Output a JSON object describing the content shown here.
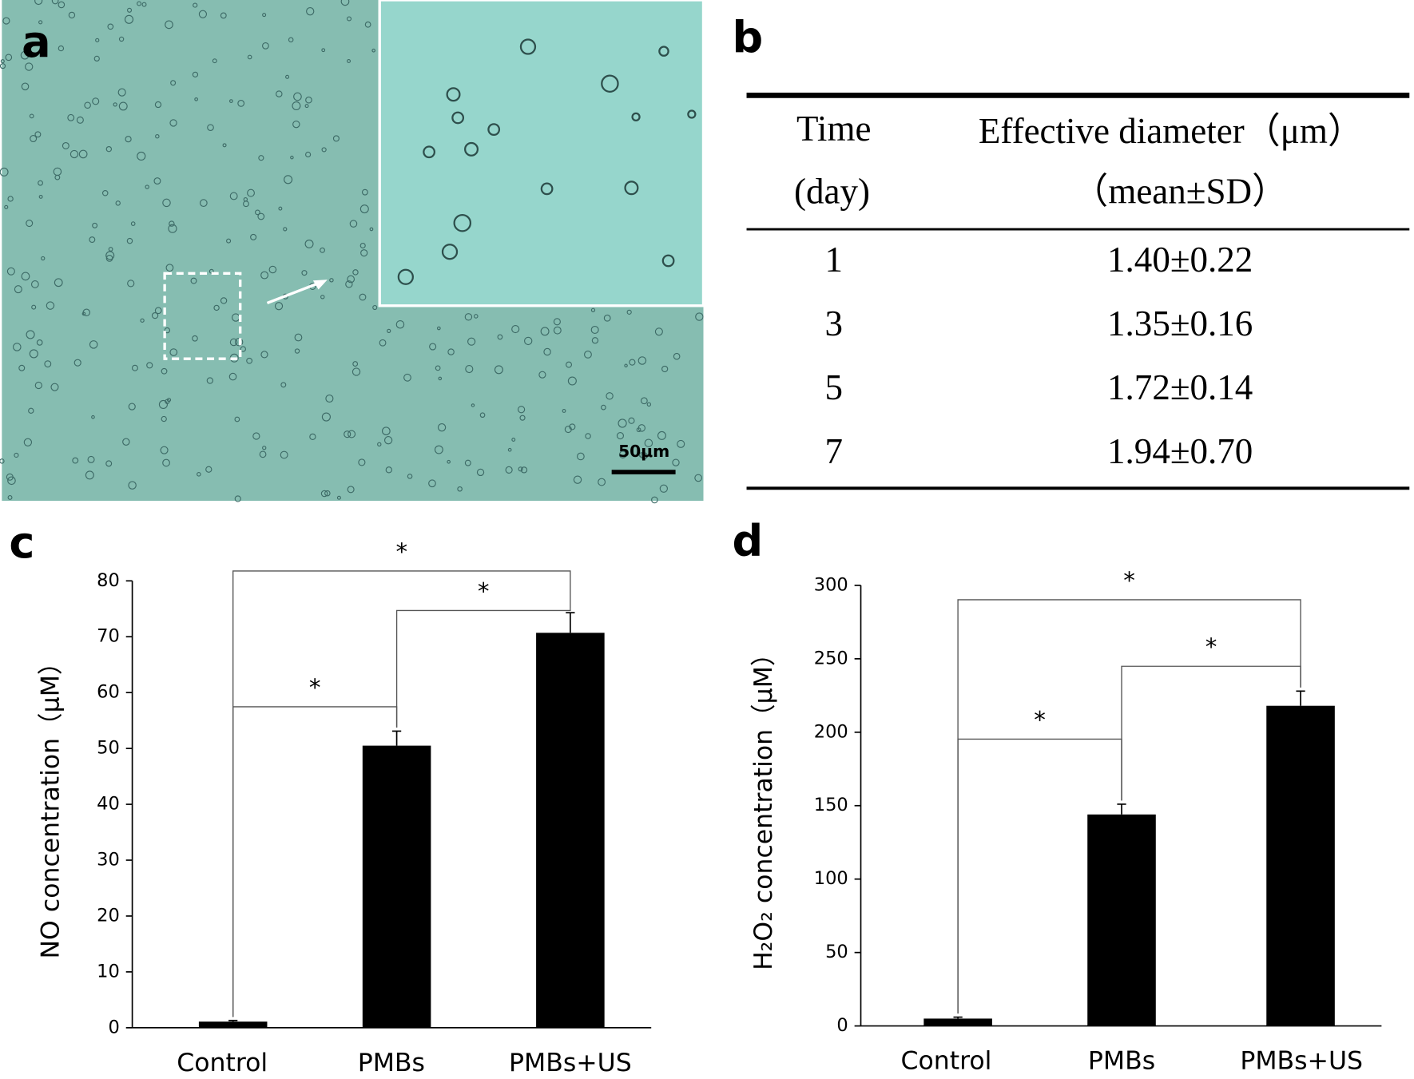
{
  "panel_labels": [
    "a",
    "b",
    "c",
    "d"
  ],
  "micrograph": {
    "scale_bar": "50μm"
  },
  "table": {
    "header": [
      [
        "Time",
        "(day)"
      ],
      [
        "Effective diameter（μm）",
        "（mean±SD）"
      ]
    ],
    "rows": [
      [
        "1",
        "1.40±0.22"
      ],
      [
        "3",
        "1.35±0.16"
      ],
      [
        "5",
        "1.72±0.14"
      ],
      [
        "7",
        "1.94±0.70"
      ]
    ]
  },
  "chart_data": [
    {
      "type": "bar",
      "y_label": "NO concentration（μM）",
      "categories": [
        "Control",
        "PMBs",
        "PMBs+US"
      ],
      "values": [
        1.1,
        50.5,
        70.7
      ],
      "errors": [
        0.2,
        2.6,
        3.6
      ],
      "color": "#000000",
      "ylim": [
        0,
        80
      ],
      "yticks": [
        0,
        10,
        20,
        30,
        40,
        50,
        60,
        70,
        80
      ],
      "significance": [
        {
          "from": 0,
          "to": 1,
          "label": "*"
        },
        {
          "from": 1,
          "to": 2,
          "label": "*"
        },
        {
          "from": 0,
          "to": 2,
          "label": "*"
        }
      ]
    },
    {
      "type": "bar",
      "y_label": "H₂O₂ concentration（μM）",
      "categories": [
        "Control",
        "PMBs",
        "PMBs+US"
      ],
      "values": [
        5,
        144,
        218
      ],
      "errors": [
        1,
        7,
        10
      ],
      "color": "#000000",
      "ylim": [
        0,
        300
      ],
      "yticks": [
        0,
        50,
        100,
        150,
        200,
        250,
        300
      ],
      "significance": [
        {
          "from": 0,
          "to": 1,
          "label": "*"
        },
        {
          "from": 1,
          "to": 2,
          "label": "*"
        },
        {
          "from": 0,
          "to": 2,
          "label": "*"
        }
      ]
    }
  ]
}
